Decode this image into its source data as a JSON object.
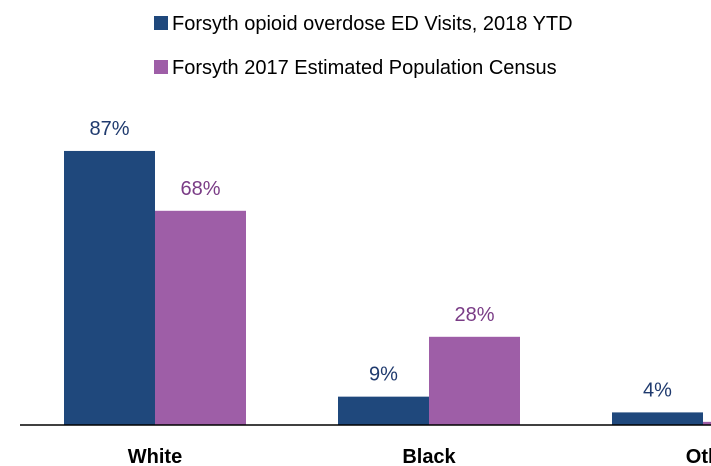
{
  "chart_data": {
    "type": "bar",
    "categories": [
      "White",
      "Black",
      "Oth"
    ],
    "series": [
      {
        "name": "Forsyth opioid overdose ED Visits, 2018 YTD",
        "values": [
          87,
          9,
          4
        ],
        "color": "#1f487c",
        "label_color": "#1f3a6e"
      },
      {
        "name": "Forsyth 2017 Estimated Population Census",
        "values": [
          68,
          28,
          1
        ],
        "color": "#9e5ea7",
        "label_color": "#7a3c86"
      }
    ],
    "data_labels": [
      [
        "87%",
        "9%",
        "4%"
      ],
      [
        "68%",
        "28%",
        ""
      ]
    ],
    "ylim": [
      0,
      100
    ],
    "legend_position": "top-right",
    "grid": false,
    "title": "",
    "xlabel": "",
    "ylabel": ""
  }
}
